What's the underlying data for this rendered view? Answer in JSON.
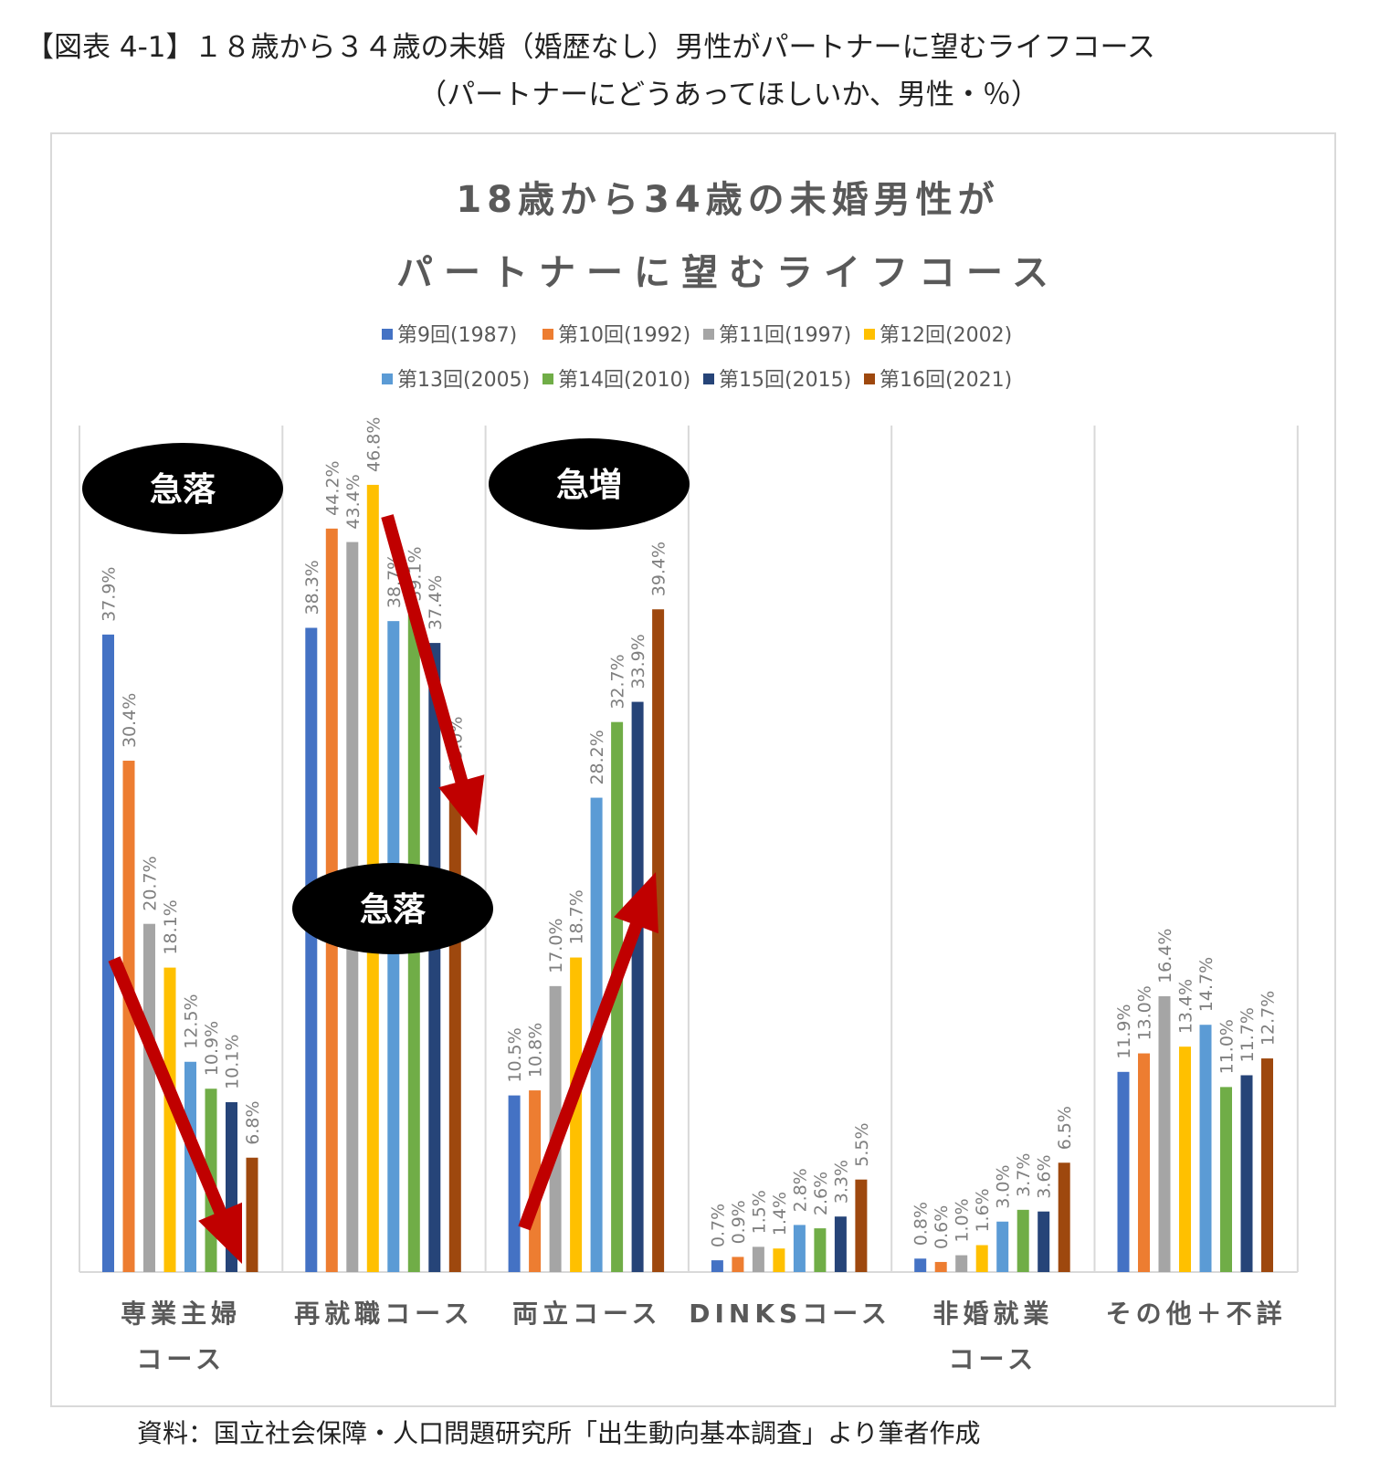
{
  "figure_title": {
    "line1": "【図表 4-1】１８歳から３４歳の未婚（婚歴なし）男性がパートナーに望むライフコース",
    "line2": "（パートナーにどうあってほしいか、男性・％）"
  },
  "source": "資料：国立社会保障・人口問題研究所「出生動向基本調査」より筆者作成",
  "chart_data": {
    "type": "bar",
    "title": [
      "18歳から34歳の未婚男性が",
      "パートナーに望むライフコース"
    ],
    "categories": [
      [
        "専業主婦",
        "コース"
      ],
      [
        "再就職コース"
      ],
      [
        "両立コース"
      ],
      [
        "DINKSコース"
      ],
      [
        "非婚就業",
        "コース"
      ],
      [
        "その他＋不詳"
      ]
    ],
    "series": [
      {
        "name": "第9回(1987)",
        "color": "#4472C4",
        "values": [
          37.9,
          38.3,
          10.5,
          0.7,
          0.8,
          11.9
        ]
      },
      {
        "name": "第10回(1992)",
        "color": "#ED7D31",
        "values": [
          30.4,
          44.2,
          10.8,
          0.9,
          0.6,
          13.0
        ]
      },
      {
        "name": "第11回(1997)",
        "color": "#A5A5A5",
        "values": [
          20.7,
          43.4,
          17.0,
          1.5,
          1.0,
          16.4
        ]
      },
      {
        "name": "第12回(2002)",
        "color": "#FFC000",
        "values": [
          18.1,
          46.8,
          18.7,
          1.4,
          1.6,
          13.4
        ]
      },
      {
        "name": "第13回(2005)",
        "color": "#5B9BD5",
        "values": [
          12.5,
          38.7,
          28.2,
          2.8,
          3.0,
          14.7
        ]
      },
      {
        "name": "第14回(2010)",
        "color": "#70AD47",
        "values": [
          10.9,
          39.1,
          32.7,
          2.6,
          3.7,
          11.0
        ]
      },
      {
        "name": "第15回(2015)",
        "color": "#264478",
        "values": [
          10.1,
          37.4,
          33.9,
          3.3,
          3.6,
          11.7
        ]
      },
      {
        "name": "第16回(2021)",
        "color": "#9E480E",
        "values": [
          6.8,
          29.0,
          39.4,
          5.5,
          6.5,
          12.7
        ]
      }
    ],
    "value_suffix": "%",
    "ylim": [
      0,
      50
    ],
    "grid": false,
    "legend_position": "top",
    "annotations": [
      {
        "text": "急落",
        "category": 0
      },
      {
        "text": "急落",
        "category": 1
      },
      {
        "text": "急増",
        "category": 2
      }
    ]
  }
}
